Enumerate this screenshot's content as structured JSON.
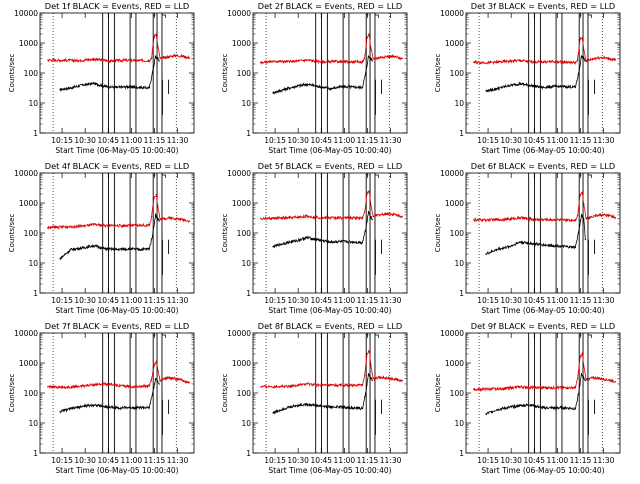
{
  "colors": {
    "events": "#000000",
    "lld": "#dd0000",
    "frame": "#000000",
    "background": "#ffffff"
  },
  "shared": {
    "xlabel": "Start Time (06-May-05 10:00:40)",
    "ylabel": "Counts/sec",
    "x_unit": "minutes after 10:00:40",
    "xlim": [
      0,
      100
    ],
    "ylim": [
      1,
      10000
    ],
    "yscale": "log",
    "x_ticks": [
      {
        "value": 14.33,
        "label": "10:15"
      },
      {
        "value": 29.33,
        "label": "10:30"
      },
      {
        "value": 44.33,
        "label": "10:45"
      },
      {
        "value": 59.33,
        "label": "11:00"
      },
      {
        "value": 74.33,
        "label": "11:15"
      },
      {
        "value": 89.33,
        "label": "11:30"
      }
    ],
    "y_ticks": [
      {
        "value": 1,
        "label": "1"
      },
      {
        "value": 10,
        "label": "10"
      },
      {
        "value": 100,
        "label": "100"
      },
      {
        "value": 1000,
        "label": "1000"
      },
      {
        "value": 10000,
        "label": "10000"
      }
    ]
  },
  "chart_data": [
    {
      "type": "line",
      "title": "Det 1f BLACK = Events, RED = LLD",
      "series": [
        {
          "name": "Events",
          "x": [
            13,
            20,
            28,
            35,
            42,
            50,
            58,
            65,
            71,
            73,
            75,
            76.5,
            77.5
          ],
          "y": [
            28,
            32,
            40,
            45,
            36,
            33,
            35,
            33,
            32,
            100,
            350,
            300,
            250
          ]
        },
        {
          "name": "LLD",
          "x": [
            5,
            15,
            25,
            35,
            45,
            55,
            65,
            71,
            72.5,
            74,
            75.5,
            76.5,
            78,
            80,
            84,
            88,
            93,
            97
          ],
          "y": [
            270,
            265,
            260,
            290,
            250,
            265,
            260,
            260,
            320,
            1600,
            2000,
            800,
            300,
            320,
            350,
            380,
            360,
            320
          ]
        }
      ]
    },
    {
      "type": "line",
      "title": "Det 2f BLACK = Events, RED = LLD",
      "series": [
        {
          "name": "Events",
          "x": [
            13,
            20,
            28,
            35,
            42,
            50,
            58,
            65,
            71,
            73,
            75,
            76.5,
            77.5
          ],
          "y": [
            22,
            28,
            36,
            42,
            36,
            30,
            35,
            34,
            33,
            90,
            360,
            300,
            250
          ]
        },
        {
          "name": "LLD",
          "x": [
            5,
            15,
            25,
            35,
            45,
            55,
            65,
            71,
            72.5,
            74,
            75.5,
            76.5,
            78,
            80,
            84,
            88,
            93,
            97
          ],
          "y": [
            230,
            245,
            240,
            270,
            235,
            240,
            235,
            235,
            300,
            1500,
            1900,
            700,
            290,
            310,
            340,
            360,
            340,
            300
          ]
        }
      ]
    },
    {
      "type": "line",
      "title": "Det 3f BLACK = Events, RED = LLD",
      "series": [
        {
          "name": "Events",
          "x": [
            13,
            20,
            28,
            35,
            42,
            50,
            58,
            65,
            71,
            73,
            75,
            76.5,
            77.5
          ],
          "y": [
            25,
            30,
            38,
            44,
            38,
            33,
            36,
            35,
            34,
            90,
            360,
            300,
            250
          ]
        },
        {
          "name": "LLD",
          "x": [
            5,
            15,
            25,
            35,
            45,
            55,
            65,
            71,
            72.5,
            74,
            75.5,
            76.5,
            78,
            80,
            84,
            88,
            93,
            97
          ],
          "y": [
            230,
            220,
            240,
            260,
            230,
            240,
            230,
            220,
            280,
            1300,
            1500,
            600,
            250,
            270,
            310,
            330,
            300,
            270
          ]
        }
      ]
    },
    {
      "type": "line",
      "title": "Det 4f BLACK = Events, RED = LLD",
      "series": [
        {
          "name": "Events",
          "x": [
            13,
            20,
            28,
            35,
            42,
            50,
            58,
            65,
            71,
            73,
            75,
            76.5,
            77.5
          ],
          "y": [
            14,
            28,
            32,
            38,
            30,
            28,
            30,
            28,
            30,
            80,
            400,
            300,
            250
          ]
        },
        {
          "name": "LLD",
          "x": [
            5,
            15,
            25,
            35,
            45,
            55,
            65,
            71,
            72.5,
            74,
            75.5,
            76.5,
            78,
            80,
            84,
            88,
            93,
            97
          ],
          "y": [
            150,
            160,
            165,
            190,
            175,
            175,
            180,
            180,
            350,
            1500,
            1900,
            800,
            280,
            300,
            320,
            300,
            280,
            250
          ]
        }
      ]
    },
    {
      "type": "line",
      "title": "Det 5f BLACK = Events, RED = LLD",
      "series": [
        {
          "name": "Events",
          "x": [
            13,
            20,
            28,
            35,
            42,
            50,
            58,
            65,
            71,
            73,
            75,
            76.5,
            77.5
          ],
          "y": [
            35,
            45,
            55,
            70,
            60,
            50,
            52,
            50,
            48,
            120,
            500,
            350,
            280
          ]
        },
        {
          "name": "LLD",
          "x": [
            5,
            15,
            25,
            35,
            45,
            55,
            65,
            71,
            72.5,
            74,
            75.5,
            76.5,
            78,
            80,
            84,
            88,
            93,
            97
          ],
          "y": [
            300,
            310,
            320,
            360,
            320,
            320,
            320,
            320,
            500,
            2000,
            2500,
            900,
            350,
            380,
            420,
            440,
            400,
            350
          ]
        }
      ]
    },
    {
      "type": "line",
      "title": "Det 6f BLACK = Events, RED = LLD",
      "series": [
        {
          "name": "Events",
          "x": [
            13,
            20,
            28,
            35,
            42,
            50,
            58,
            65,
            71,
            73,
            75,
            76.5,
            77.5
          ],
          "y": [
            20,
            28,
            35,
            50,
            45,
            40,
            38,
            35,
            33,
            100,
            400,
            300,
            60
          ]
        },
        {
          "name": "LLD",
          "x": [
            5,
            15,
            25,
            35,
            45,
            55,
            65,
            71,
            72.5,
            74,
            75.5,
            76.5,
            78,
            80,
            84,
            88,
            93,
            97
          ],
          "y": [
            270,
            275,
            280,
            320,
            280,
            280,
            270,
            270,
            380,
            1900,
            2300,
            900,
            300,
            330,
            380,
            400,
            380,
            330
          ]
        }
      ]
    },
    {
      "type": "line",
      "title": "Det 7f BLACK = Events, RED = LLD",
      "series": [
        {
          "name": "Events",
          "x": [
            13,
            20,
            28,
            35,
            42,
            50,
            58,
            65,
            71,
            73,
            75,
            76.5,
            77.5
          ],
          "y": [
            24,
            30,
            36,
            40,
            35,
            32,
            33,
            33,
            32,
            90,
            280,
            250,
            200
          ]
        },
        {
          "name": "LLD",
          "x": [
            5,
            15,
            25,
            35,
            45,
            55,
            65,
            71,
            72.5,
            74,
            75.5,
            76.5,
            78,
            80,
            84,
            88,
            93,
            97
          ],
          "y": [
            160,
            155,
            165,
            190,
            200,
            165,
            165,
            170,
            300,
            800,
            1100,
            600,
            250,
            300,
            320,
            300,
            260,
            220
          ]
        }
      ]
    },
    {
      "type": "line",
      "title": "Det 8f BLACK = Events, RED = LLD",
      "series": [
        {
          "name": "Events",
          "x": [
            13,
            20,
            28,
            35,
            42,
            50,
            58,
            65,
            71,
            73,
            75,
            76.5,
            77.5
          ],
          "y": [
            22,
            30,
            38,
            42,
            38,
            34,
            34,
            32,
            30,
            90,
            420,
            320,
            260
          ]
        },
        {
          "name": "LLD",
          "x": [
            5,
            15,
            25,
            35,
            45,
            55,
            65,
            71,
            72.5,
            74,
            75.5,
            76.5,
            78,
            80,
            84,
            88,
            93,
            97
          ],
          "y": [
            160,
            165,
            170,
            200,
            180,
            180,
            180,
            180,
            380,
            2000,
            2500,
            900,
            300,
            320,
            330,
            310,
            280,
            250
          ]
        }
      ]
    },
    {
      "type": "line",
      "title": "Det 9f BLACK = Events, RED = LLD",
      "series": [
        {
          "name": "Events",
          "x": [
            13,
            20,
            28,
            35,
            42,
            50,
            58,
            65,
            71,
            73,
            75,
            76.5,
            77.5
          ],
          "y": [
            20,
            28,
            33,
            38,
            40,
            32,
            32,
            32,
            30,
            90,
            420,
            320,
            260
          ]
        },
        {
          "name": "LLD",
          "x": [
            5,
            15,
            25,
            35,
            45,
            55,
            65,
            71,
            72.5,
            74,
            75.5,
            76.5,
            78,
            80,
            84,
            88,
            93,
            97
          ],
          "y": [
            130,
            135,
            140,
            160,
            150,
            150,
            150,
            150,
            300,
            1500,
            2000,
            800,
            280,
            300,
            320,
            300,
            270,
            240
          ]
        }
      ]
    }
  ]
}
